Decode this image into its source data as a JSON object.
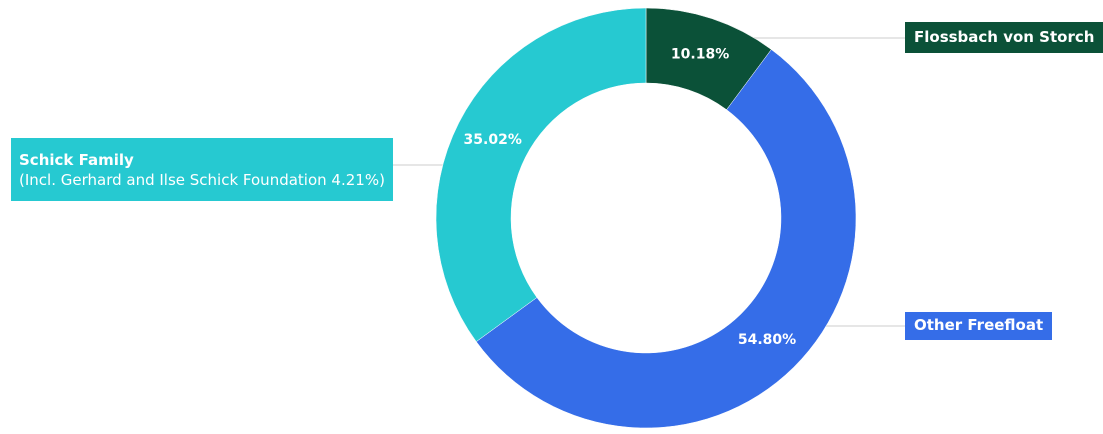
{
  "chart_data": {
    "type": "donut",
    "series": [
      {
        "name": "Flossbach von Storch",
        "color": "#0b5138",
        "values": [
          10.18
        ],
        "value_labels": [
          "10.18%"
        ]
      },
      {
        "name": "Other Freefloat",
        "color": "#356de8",
        "values": [
          54.8
        ],
        "value_labels": [
          "54.80%"
        ]
      },
      {
        "name": "Schick Family",
        "color": "#26c9d1",
        "values": [
          35.02
        ],
        "value_labels": [
          "35.02%"
        ]
      }
    ],
    "annotation": "(Incl. Gerhard and Ilse Schick Foundation 4.21%)"
  }
}
